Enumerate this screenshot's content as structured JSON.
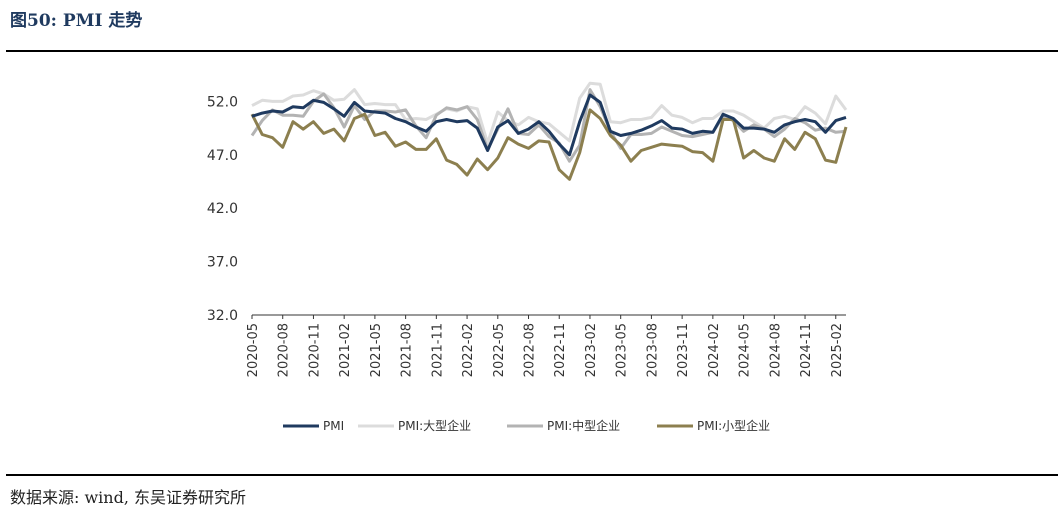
{
  "header": {
    "title": "图50: PMI 走势"
  },
  "footer": {
    "source": "数据来源: wind, 东吴证券研究所"
  },
  "chart_data": {
    "type": "line",
    "title": "",
    "xlabel": "",
    "ylabel": "",
    "ylim": [
      32.0,
      54.0
    ],
    "yticks": [
      "52.0",
      "47.0",
      "42.0",
      "37.0",
      "32.0"
    ],
    "ytick_values": [
      52.0,
      47.0,
      42.0,
      37.0,
      32.0
    ],
    "xtick_labels": [
      "2020-05",
      "2020-08",
      "2020-11",
      "2021-02",
      "2021-05",
      "2021-08",
      "2021-11",
      "2022-02",
      "2022-05",
      "2022-08",
      "2022-11",
      "2023-02",
      "2023-05",
      "2023-08",
      "2023-11",
      "2024-02",
      "2024-05",
      "2024-08",
      "2024-11",
      "2025-02"
    ],
    "x": [
      "2020-05",
      "2020-06",
      "2020-07",
      "2020-08",
      "2020-09",
      "2020-10",
      "2020-11",
      "2020-12",
      "2021-01",
      "2021-02",
      "2021-03",
      "2021-04",
      "2021-05",
      "2021-06",
      "2021-07",
      "2021-08",
      "2021-09",
      "2021-10",
      "2021-11",
      "2021-12",
      "2022-01",
      "2022-02",
      "2022-03",
      "2022-04",
      "2022-05",
      "2022-06",
      "2022-07",
      "2022-08",
      "2022-09",
      "2022-10",
      "2022-11",
      "2022-12",
      "2023-01",
      "2023-02",
      "2023-03",
      "2023-04",
      "2023-05",
      "2023-06",
      "2023-07",
      "2023-08",
      "2023-09",
      "2023-10",
      "2023-11",
      "2023-12",
      "2024-01",
      "2024-02",
      "2024-03",
      "2024-04",
      "2024-05",
      "2024-06",
      "2024-07",
      "2024-08",
      "2024-09",
      "2024-10",
      "2024-11",
      "2024-12",
      "2025-01",
      "2025-02",
      "2025-03"
    ],
    "grid": false,
    "legend_position": "bottom",
    "series": [
      {
        "name": "PMI",
        "color": "#1f3a5f",
        "values": [
          50.6,
          50.9,
          51.1,
          51.0,
          51.5,
          51.4,
          52.1,
          51.9,
          51.3,
          50.6,
          51.9,
          51.1,
          51.0,
          50.9,
          50.4,
          50.1,
          49.6,
          49.2,
          50.1,
          50.3,
          50.1,
          50.2,
          49.5,
          47.4,
          49.6,
          50.2,
          49.0,
          49.4,
          50.1,
          49.2,
          48.0,
          47.0,
          50.1,
          52.6,
          51.9,
          49.2,
          48.8,
          49.0,
          49.3,
          49.7,
          50.2,
          49.5,
          49.4,
          49.0,
          49.2,
          49.1,
          50.8,
          50.4,
          49.5,
          49.5,
          49.4,
          49.1,
          49.8,
          50.1,
          50.3,
          50.1,
          49.1,
          50.2,
          50.5
        ]
      },
      {
        "name": "PMI:大型企业",
        "color": "#dcdcdc",
        "values": [
          51.6,
          52.1,
          52.0,
          52.0,
          52.5,
          52.6,
          53.0,
          52.7,
          52.1,
          52.2,
          53.1,
          51.7,
          51.8,
          51.7,
          51.7,
          50.3,
          50.4,
          50.3,
          50.8,
          51.3,
          51.1,
          51.5,
          51.3,
          48.1,
          51.0,
          50.2,
          49.8,
          50.5,
          50.1,
          49.9,
          49.1,
          48.3,
          52.3,
          53.7,
          53.6,
          50.1,
          50.0,
          50.3,
          50.3,
          50.5,
          51.6,
          50.7,
          50.5,
          50.0,
          50.4,
          50.4,
          51.1,
          51.1,
          50.7,
          50.1,
          49.5,
          50.4,
          50.6,
          50.3,
          51.5,
          50.9,
          49.9,
          52.5,
          51.2
        ]
      },
      {
        "name": "PMI:中型企业",
        "color": "#b3b3b3",
        "values": [
          48.8,
          50.2,
          51.2,
          50.7,
          50.7,
          50.6,
          52.0,
          52.7,
          51.4,
          49.6,
          51.6,
          50.3,
          51.1,
          51.1,
          51.0,
          51.2,
          49.7,
          48.6,
          50.7,
          51.4,
          51.2,
          51.5,
          50.3,
          47.5,
          49.4,
          51.3,
          49.0,
          48.9,
          49.8,
          48.7,
          48.1,
          46.4,
          47.9,
          53.1,
          51.5,
          49.2,
          47.6,
          48.9,
          48.9,
          49.0,
          49.6,
          49.2,
          48.8,
          48.7,
          48.9,
          49.1,
          50.6,
          50.2,
          49.2,
          49.8,
          49.4,
          48.7,
          49.4,
          50.4,
          50.0,
          49.3,
          49.5,
          49.1,
          49.2
        ]
      },
      {
        "name": "PMI:小型企业",
        "color": "#8c7f4f",
        "values": [
          50.8,
          48.9,
          48.6,
          47.7,
          50.1,
          49.4,
          50.1,
          49.0,
          49.4,
          48.3,
          50.4,
          50.8,
          48.8,
          49.1,
          47.8,
          48.2,
          47.5,
          47.5,
          48.5,
          46.5,
          46.1,
          45.1,
          46.6,
          45.6,
          46.7,
          48.6,
          48.0,
          47.6,
          48.3,
          48.2,
          45.6,
          44.7,
          47.2,
          51.2,
          50.4,
          48.8,
          47.9,
          46.4,
          47.4,
          47.7,
          48.0,
          47.9,
          47.8,
          47.3,
          47.2,
          46.4,
          50.3,
          50.3,
          46.7,
          47.4,
          46.7,
          46.4,
          48.5,
          47.5,
          49.1,
          48.5,
          46.5,
          46.3,
          49.6
        ]
      }
    ]
  }
}
